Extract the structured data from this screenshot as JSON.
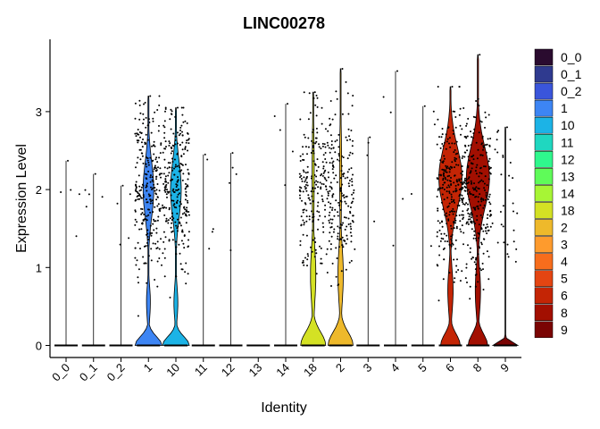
{
  "chart_data": {
    "type": "violin",
    "title": "LINC00278",
    "xlabel": "Identity",
    "ylabel": "Expression Level",
    "ylim": [
      -0.15,
      3.75
    ],
    "yticks": [
      0,
      1,
      2,
      3
    ],
    "grid": false,
    "legend_position": "right",
    "categories": [
      "0_0",
      "0_1",
      "0_2",
      "1",
      "10",
      "11",
      "12",
      "13",
      "14",
      "18",
      "2",
      "3",
      "4",
      "5",
      "6",
      "8",
      "9"
    ],
    "colors": [
      "#2a0b2f",
      "#2f3a8f",
      "#3a55db",
      "#3d85f4",
      "#1cb3e6",
      "#1fd7c0",
      "#2ff88d",
      "#5ffb59",
      "#a7f535",
      "#d4e124",
      "#eeb92b",
      "#fe9b2d",
      "#f76d1c",
      "#e44512",
      "#c42505",
      "#a20f01",
      "#7a0403"
    ],
    "max_values": [
      2.37,
      2.2,
      2.05,
      3.2,
      3.05,
      2.45,
      2.47,
      0.0,
      3.1,
      3.25,
      3.55,
      2.67,
      3.52,
      3.07,
      3.32,
      3.73,
      2.8
    ],
    "violin_shape": [
      "flat",
      "flat",
      "flat",
      "bimodal",
      "bimodal",
      "flat",
      "flat",
      "flat",
      "flat",
      "bulge",
      "bulge",
      "flat",
      "flat",
      "flat",
      "spread",
      "spread",
      "small"
    ],
    "legend": [
      "0_0",
      "0_1",
      "0_2",
      "1",
      "10",
      "11",
      "12",
      "13",
      "14",
      "18",
      "2",
      "3",
      "4",
      "5",
      "6",
      "8",
      "9"
    ]
  }
}
